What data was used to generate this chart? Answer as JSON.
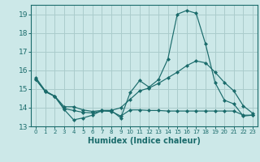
{
  "xlabel": "Humidex (Indice chaleur)",
  "bg_color": "#cce8e8",
  "grid_color": "#aacccc",
  "line_color": "#1a6b6b",
  "ylim": [
    13,
    19.5
  ],
  "xlim": [
    -0.5,
    23.5
  ],
  "yticks": [
    13,
    14,
    15,
    16,
    17,
    18,
    19
  ],
  "xtick_labels": [
    "0",
    "1",
    "2",
    "3",
    "4",
    "5",
    "6",
    "7",
    "8",
    "9",
    "10",
    "11",
    "12",
    "13",
    "14",
    "15",
    "16",
    "17",
    "18",
    "19",
    "20",
    "21",
    "22",
    "23"
  ],
  "line1_y": [
    15.6,
    14.9,
    14.6,
    13.9,
    13.35,
    13.45,
    13.6,
    13.85,
    13.85,
    13.45,
    14.8,
    15.45,
    15.1,
    15.5,
    16.6,
    19.0,
    19.2,
    19.05,
    17.4,
    15.35,
    14.4,
    14.2,
    13.55,
    13.6
  ],
  "line2_y": [
    15.5,
    14.88,
    14.62,
    14.05,
    14.05,
    13.88,
    13.8,
    13.85,
    13.85,
    14.0,
    14.45,
    14.9,
    15.05,
    15.3,
    15.6,
    15.9,
    16.25,
    16.5,
    16.4,
    15.9,
    15.35,
    14.9,
    14.1,
    13.7
  ],
  "line3_y": [
    15.5,
    14.85,
    14.6,
    13.95,
    13.85,
    13.75,
    13.72,
    13.82,
    13.8,
    13.55,
    13.88,
    13.88,
    13.85,
    13.85,
    13.82,
    13.82,
    13.82,
    13.82,
    13.82,
    13.82,
    13.82,
    13.82,
    13.6,
    13.6
  ]
}
